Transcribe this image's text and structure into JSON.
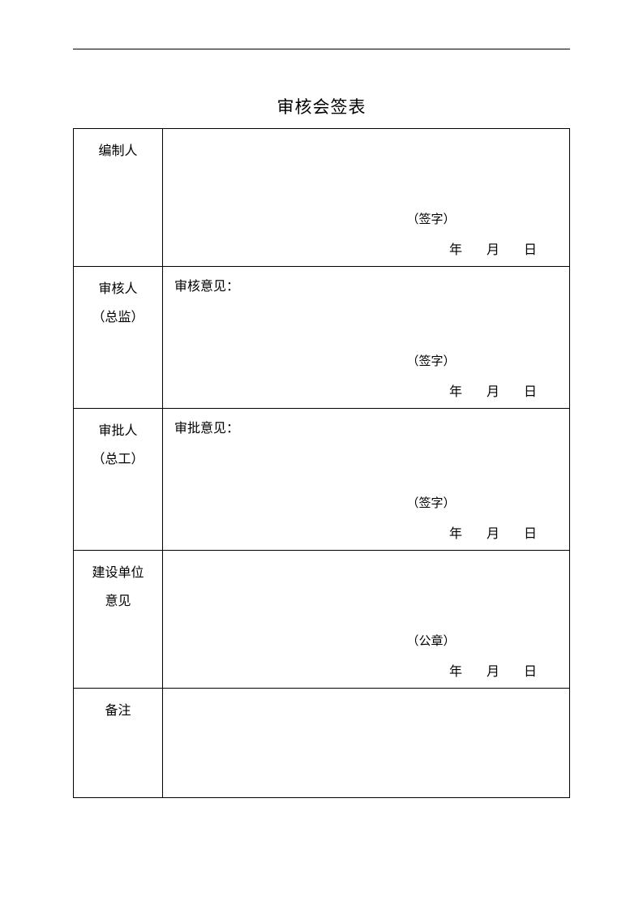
{
  "title": "审核会签表",
  "rows": [
    {
      "label": "编制人",
      "opinion": "",
      "sign": "（签字）",
      "date": {
        "y": "年",
        "m": "月",
        "d": "日"
      }
    },
    {
      "label": "审核人（总监）",
      "labelLine1": "审核人",
      "labelLine2": "（总监）",
      "opinion": "审核意见：",
      "sign": "（签字）",
      "date": {
        "y": "年",
        "m": "月",
        "d": "日"
      }
    },
    {
      "label": "审批人（总工）",
      "labelLine1": "审批人",
      "labelLine2": "（总工）",
      "opinion": "审批意见：",
      "sign": "（签字）",
      "date": {
        "y": "年",
        "m": "月",
        "d": "日"
      }
    },
    {
      "label": "建设单位意见",
      "labelLine1": "建设单位",
      "labelLine2": "意见",
      "opinion": "",
      "sign": "（公章）",
      "date": {
        "y": "年",
        "m": "月",
        "d": "日"
      }
    },
    {
      "label": "备注",
      "opinion": "",
      "sign": "",
      "date": null
    }
  ],
  "colors": {
    "text": "#000000",
    "background": "#ffffff",
    "border": "#000000"
  },
  "layout": {
    "pageWidth": 793,
    "pageHeight": 1122,
    "labelColWidth": 110,
    "titleFontSize": 21,
    "bodyFontSize": 16
  }
}
